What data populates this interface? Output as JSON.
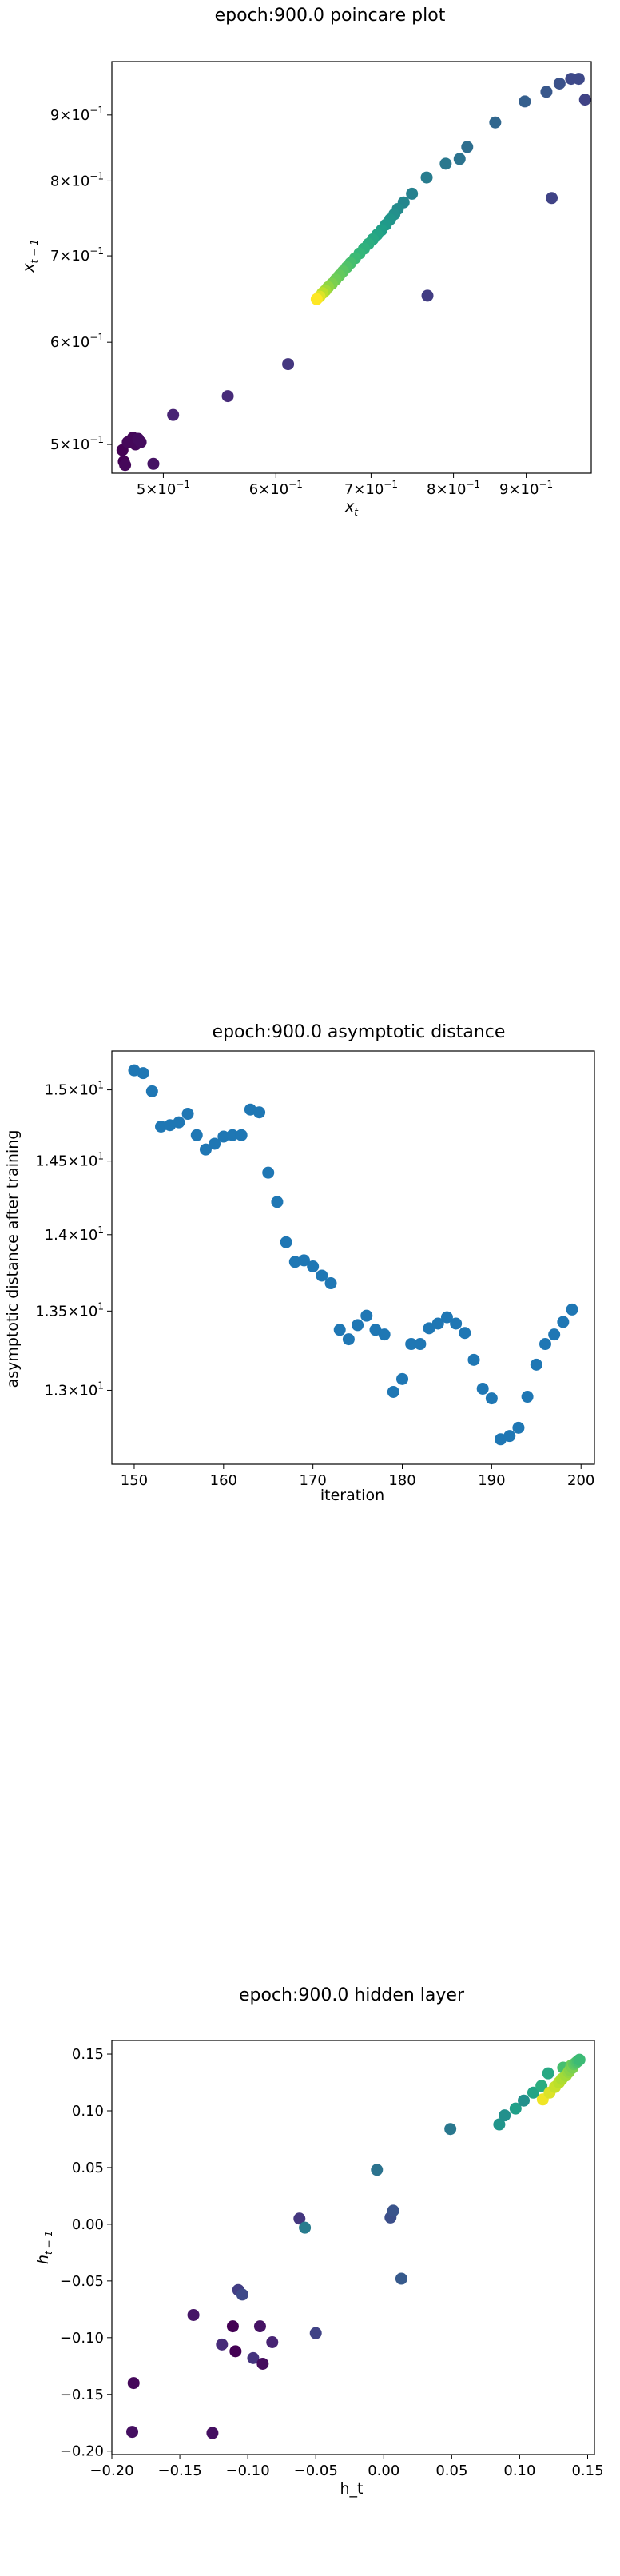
{
  "chart_data": [
    {
      "type": "scatter",
      "title": "epoch:900.0 poincare plot",
      "xlabel": "x_t",
      "ylabel": "x_{t-1}",
      "xscale": "log",
      "yscale": "log",
      "xlim": [
        0.46,
        1.0
      ],
      "ylim": [
        0.475,
        0.99
      ],
      "xticks": [
        {
          "value": 0.5,
          "label": "5×10",
          "exp": "−1"
        },
        {
          "value": 0.6,
          "label": "6×10",
          "exp": "−1"
        },
        {
          "value": 0.7,
          "label": "7×10",
          "exp": "−1"
        },
        {
          "value": 0.8,
          "label": "8×10",
          "exp": "−1"
        },
        {
          "value": 0.9,
          "label": "9×10",
          "exp": "−1"
        }
      ],
      "yticks": [
        {
          "value": 0.5,
          "label": "5×10",
          "exp": "−1"
        },
        {
          "value": 0.6,
          "label": "6×10",
          "exp": "−1"
        },
        {
          "value": 0.7,
          "label": "7×10",
          "exp": "−1"
        },
        {
          "value": 0.8,
          "label": "8×10",
          "exp": "−1"
        },
        {
          "value": 0.9,
          "label": "9×10",
          "exp": "−1"
        }
      ],
      "colormap": "viridis",
      "points": [
        {
          "x": 0.468,
          "y": 0.495,
          "c": 0.0
        },
        {
          "x": 0.469,
          "y": 0.485,
          "c": 0.0
        },
        {
          "x": 0.47,
          "y": 0.482,
          "c": 0.02
        },
        {
          "x": 0.472,
          "y": 0.502,
          "c": 0.02
        },
        {
          "x": 0.476,
          "y": 0.506,
          "c": 0.02
        },
        {
          "x": 0.478,
          "y": 0.5,
          "c": 0.02
        },
        {
          "x": 0.48,
          "y": 0.505,
          "c": 0.03
        },
        {
          "x": 0.482,
          "y": 0.502,
          "c": 0.03
        },
        {
          "x": 0.492,
          "y": 0.483,
          "c": 0.05
        },
        {
          "x": 0.508,
          "y": 0.527,
          "c": 0.1
        },
        {
          "x": 0.555,
          "y": 0.545,
          "c": 0.12
        },
        {
          "x": 0.612,
          "y": 0.577,
          "c": 0.16
        },
        {
          "x": 0.767,
          "y": 0.652,
          "c": 0.18
        },
        {
          "x": 0.938,
          "y": 0.776,
          "c": 0.2
        },
        {
          "x": 0.99,
          "y": 0.925,
          "c": 0.2
        },
        {
          "x": 0.968,
          "y": 0.96,
          "c": 0.22
        },
        {
          "x": 0.98,
          "y": 0.96,
          "c": 0.22
        },
        {
          "x": 0.95,
          "y": 0.952,
          "c": 0.25
        },
        {
          "x": 0.93,
          "y": 0.938,
          "c": 0.27
        },
        {
          "x": 0.898,
          "y": 0.922,
          "c": 0.3
        },
        {
          "x": 0.856,
          "y": 0.888,
          "c": 0.33
        },
        {
          "x": 0.818,
          "y": 0.85,
          "c": 0.36
        },
        {
          "x": 0.808,
          "y": 0.832,
          "c": 0.38
        },
        {
          "x": 0.79,
          "y": 0.825,
          "c": 0.4
        },
        {
          "x": 0.766,
          "y": 0.805,
          "c": 0.42
        },
        {
          "x": 0.748,
          "y": 0.782,
          "c": 0.44
        },
        {
          "x": 0.738,
          "y": 0.77,
          "c": 0.46
        },
        {
          "x": 0.731,
          "y": 0.761,
          "c": 0.48
        },
        {
          "x": 0.727,
          "y": 0.754,
          "c": 0.5
        },
        {
          "x": 0.722,
          "y": 0.747,
          "c": 0.52
        },
        {
          "x": 0.717,
          "y": 0.74,
          "c": 0.54
        },
        {
          "x": 0.712,
          "y": 0.733,
          "c": 0.56
        },
        {
          "x": 0.707,
          "y": 0.727,
          "c": 0.58
        },
        {
          "x": 0.702,
          "y": 0.721,
          "c": 0.6
        },
        {
          "x": 0.697,
          "y": 0.715,
          "c": 0.62
        },
        {
          "x": 0.692,
          "y": 0.709,
          "c": 0.64
        },
        {
          "x": 0.687,
          "y": 0.703,
          "c": 0.66
        },
        {
          "x": 0.682,
          "y": 0.697,
          "c": 0.68
        },
        {
          "x": 0.677,
          "y": 0.691,
          "c": 0.7
        },
        {
          "x": 0.673,
          "y": 0.686,
          "c": 0.72
        },
        {
          "x": 0.669,
          "y": 0.681,
          "c": 0.74
        },
        {
          "x": 0.665,
          "y": 0.676,
          "c": 0.76
        },
        {
          "x": 0.661,
          "y": 0.671,
          "c": 0.78
        },
        {
          "x": 0.657,
          "y": 0.666,
          "c": 0.8
        },
        {
          "x": 0.653,
          "y": 0.662,
          "c": 0.83
        },
        {
          "x": 0.65,
          "y": 0.658,
          "c": 0.86
        },
        {
          "x": 0.647,
          "y": 0.655,
          "c": 0.9
        },
        {
          "x": 0.644,
          "y": 0.651,
          "c": 0.95
        },
        {
          "x": 0.641,
          "y": 0.648,
          "c": 1.0
        }
      ]
    },
    {
      "type": "scatter",
      "title": "epoch:900.0 asymptotic distance",
      "xlabel": "iteration",
      "ylabel": "asymptotic distance after training",
      "yscale": "log",
      "xlim": [
        147.5,
        201.5
      ],
      "ylim": [
        12.55,
        15.28
      ],
      "xticks": [
        {
          "value": 150,
          "label": "150"
        },
        {
          "value": 160,
          "label": "160"
        },
        {
          "value": 170,
          "label": "170"
        },
        {
          "value": 180,
          "label": "180"
        },
        {
          "value": 190,
          "label": "190"
        },
        {
          "value": 200,
          "label": "200"
        }
      ],
      "yticks": [
        {
          "value": 13.0,
          "label": "1.3×10",
          "exp": "1"
        },
        {
          "value": 13.5,
          "label": "1.35×10",
          "exp": "1"
        },
        {
          "value": 14.0,
          "label": "1.4×10",
          "exp": "1"
        },
        {
          "value": 14.5,
          "label": "1.45×10",
          "exp": "1"
        },
        {
          "value": 15.0,
          "label": "1.5×10",
          "exp": "1"
        }
      ],
      "color": "#1f77b4",
      "x": [
        150,
        151,
        152,
        153,
        154,
        155,
        156,
        157,
        158,
        159,
        160,
        161,
        162,
        163,
        164,
        165,
        166,
        167,
        168,
        169,
        170,
        171,
        172,
        173,
        174,
        175,
        176,
        177,
        178,
        179,
        180,
        181,
        182,
        183,
        184,
        185,
        186,
        187,
        188,
        189,
        190,
        191,
        192,
        193,
        194,
        195,
        196,
        197,
        198,
        199
      ],
      "values": [
        15.14,
        15.12,
        14.99,
        14.74,
        14.75,
        14.77,
        14.83,
        14.68,
        14.58,
        14.62,
        14.67,
        14.68,
        14.68,
        14.86,
        14.84,
        14.42,
        14.22,
        13.95,
        13.82,
        13.83,
        13.79,
        13.73,
        13.68,
        13.38,
        13.32,
        13.41,
        13.47,
        13.38,
        13.35,
        12.99,
        13.07,
        13.29,
        13.29,
        13.39,
        13.42,
        13.46,
        13.42,
        13.36,
        13.19,
        13.01,
        12.95,
        12.7,
        12.72,
        12.77,
        12.96,
        13.16,
        13.29,
        13.35,
        13.43,
        13.51
      ]
    },
    {
      "type": "scatter",
      "title": "epoch:900.0 hidden layer",
      "xlabel": "h_t",
      "ylabel": "h_{t-1}",
      "xlim": [
        -0.2,
        0.155
      ],
      "ylim": [
        -0.203,
        0.162
      ],
      "xticks": [
        {
          "value": -0.2,
          "label": "−0.20"
        },
        {
          "value": -0.15,
          "label": "−0.15"
        },
        {
          "value": -0.1,
          "label": "−0.10"
        },
        {
          "value": -0.05,
          "label": "−0.05"
        },
        {
          "value": 0.0,
          "label": "0.00"
        },
        {
          "value": 0.05,
          "label": "0.05"
        },
        {
          "value": 0.1,
          "label": "0.10"
        },
        {
          "value": 0.15,
          "label": "0.15"
        }
      ],
      "yticks": [
        {
          "value": -0.2,
          "label": "−0.20"
        },
        {
          "value": -0.15,
          "label": "−0.15"
        },
        {
          "value": -0.1,
          "label": "−0.10"
        },
        {
          "value": -0.05,
          "label": "−0.05"
        },
        {
          "value": 0.0,
          "label": "0.00"
        },
        {
          "value": 0.05,
          "label": "0.05"
        },
        {
          "value": 0.1,
          "label": "0.10"
        },
        {
          "value": 0.15,
          "label": "0.15"
        }
      ],
      "colormap": "viridis",
      "points": [
        {
          "x": -0.184,
          "y": -0.14,
          "c": 0.02
        },
        {
          "x": -0.185,
          "y": -0.183,
          "c": 0.04
        },
        {
          "x": -0.126,
          "y": -0.184,
          "c": 0.04
        },
        {
          "x": -0.14,
          "y": -0.08,
          "c": 0.06
        },
        {
          "x": -0.119,
          "y": -0.106,
          "c": 0.12
        },
        {
          "x": -0.111,
          "y": -0.09,
          "c": 0.0
        },
        {
          "x": -0.109,
          "y": -0.112,
          "c": 0.0
        },
        {
          "x": -0.107,
          "y": -0.058,
          "c": 0.18
        },
        {
          "x": -0.104,
          "y": -0.062,
          "c": 0.22
        },
        {
          "x": -0.096,
          "y": -0.118,
          "c": 0.15
        },
        {
          "x": -0.091,
          "y": -0.09,
          "c": 0.05
        },
        {
          "x": -0.089,
          "y": -0.123,
          "c": 0.03
        },
        {
          "x": -0.082,
          "y": -0.104,
          "c": 0.1
        },
        {
          "x": -0.05,
          "y": -0.096,
          "c": 0.2
        },
        {
          "x": -0.062,
          "y": 0.005,
          "c": 0.16
        },
        {
          "x": -0.058,
          "y": -0.003,
          "c": 0.42
        },
        {
          "x": -0.005,
          "y": 0.048,
          "c": 0.38
        },
        {
          "x": 0.005,
          "y": 0.006,
          "c": 0.24
        },
        {
          "x": 0.007,
          "y": 0.012,
          "c": 0.26
        },
        {
          "x": 0.013,
          "y": -0.048,
          "c": 0.28
        },
        {
          "x": 0.049,
          "y": 0.084,
          "c": 0.4
        },
        {
          "x": 0.085,
          "y": 0.088,
          "c": 0.52
        },
        {
          "x": 0.089,
          "y": 0.096,
          "c": 0.5
        },
        {
          "x": 0.097,
          "y": 0.102,
          "c": 0.56
        },
        {
          "x": 0.103,
          "y": 0.109,
          "c": 0.5
        },
        {
          "x": 0.11,
          "y": 0.116,
          "c": 0.58
        },
        {
          "x": 0.116,
          "y": 0.122,
          "c": 0.62
        },
        {
          "x": 0.121,
          "y": 0.133,
          "c": 0.6
        },
        {
          "x": 0.117,
          "y": 0.11,
          "c": 0.98
        },
        {
          "x": 0.122,
          "y": 0.116,
          "c": 0.95
        },
        {
          "x": 0.126,
          "y": 0.121,
          "c": 0.92
        },
        {
          "x": 0.129,
          "y": 0.125,
          "c": 0.9
        },
        {
          "x": 0.131,
          "y": 0.128,
          "c": 0.88
        },
        {
          "x": 0.132,
          "y": 0.138,
          "c": 0.7
        },
        {
          "x": 0.134,
          "y": 0.131,
          "c": 0.86
        },
        {
          "x": 0.136,
          "y": 0.134,
          "c": 0.84
        },
        {
          "x": 0.137,
          "y": 0.136,
          "c": 0.82
        },
        {
          "x": 0.138,
          "y": 0.14,
          "c": 0.78
        },
        {
          "x": 0.139,
          "y": 0.138,
          "c": 0.8
        },
        {
          "x": 0.14,
          "y": 0.141,
          "c": 0.76
        },
        {
          "x": 0.141,
          "y": 0.142,
          "c": 0.74
        },
        {
          "x": 0.142,
          "y": 0.143,
          "c": 0.72
        },
        {
          "x": 0.143,
          "y": 0.144,
          "c": 0.7
        },
        {
          "x": 0.144,
          "y": 0.145,
          "c": 0.68
        }
      ]
    }
  ]
}
